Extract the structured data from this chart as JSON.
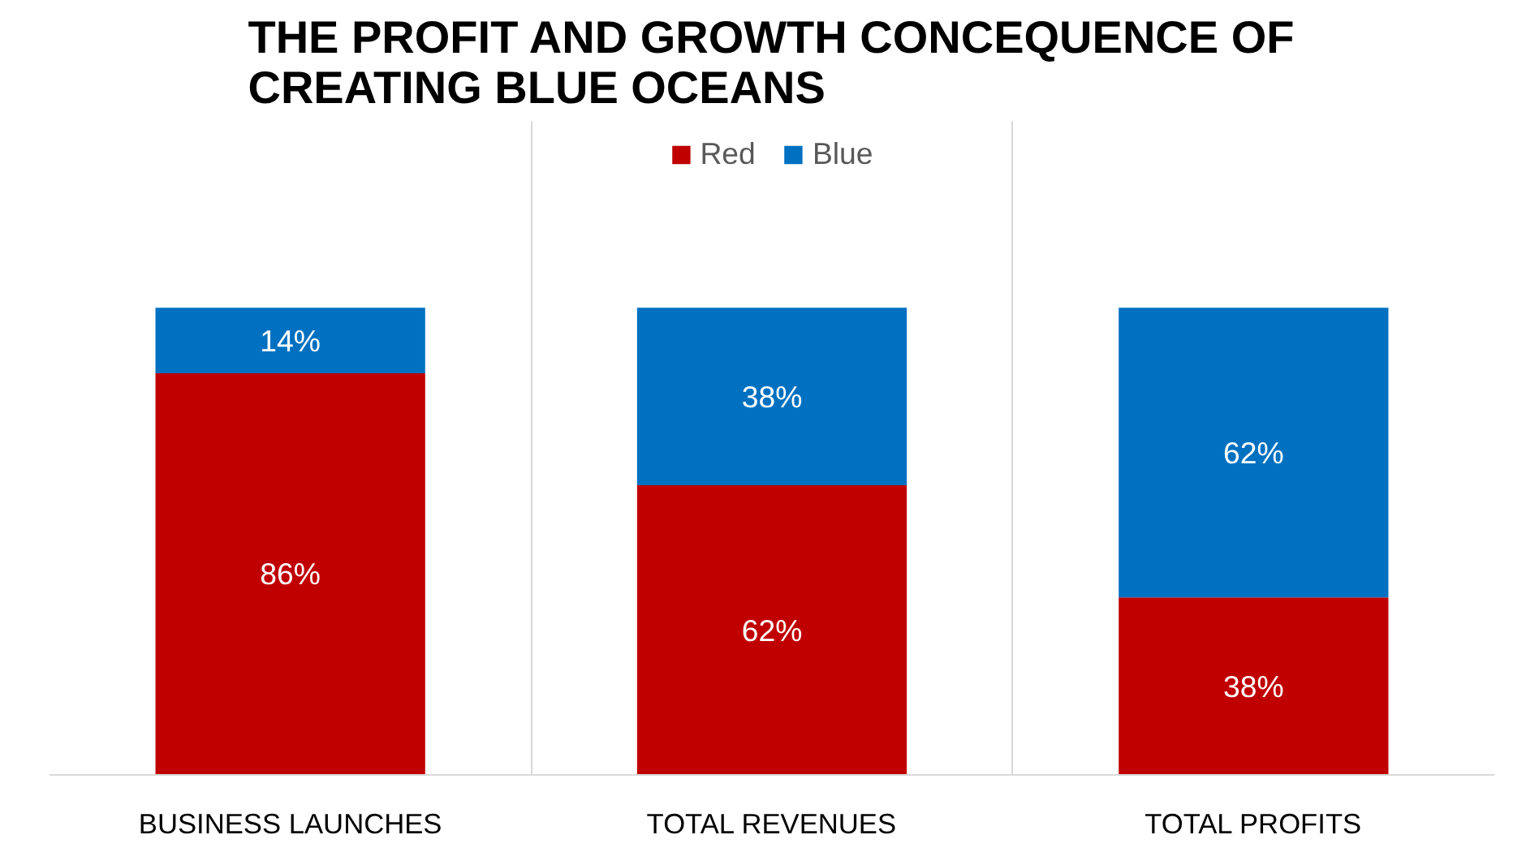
{
  "chart_data": {
    "type": "bar",
    "title": "THE PROFIT AND GROWTH CONCEQUENCE OF CREATING BLUE OCEANS",
    "categories": [
      "BUSINESS LAUNCHES",
      "TOTAL REVENUES",
      "TOTAL PROFITS"
    ],
    "stacked": true,
    "legend": "top",
    "grid": "x",
    "series": [
      {
        "name": "Red",
        "color": "#c00000",
        "values": [
          86,
          62,
          38
        ],
        "value_labels": [
          "86%",
          "62%",
          "38%"
        ]
      },
      {
        "name": "Blue",
        "color": "#0070c0",
        "values": [
          14,
          38,
          62
        ],
        "value_labels": [
          "14%",
          "38%",
          "62%"
        ]
      }
    ]
  }
}
